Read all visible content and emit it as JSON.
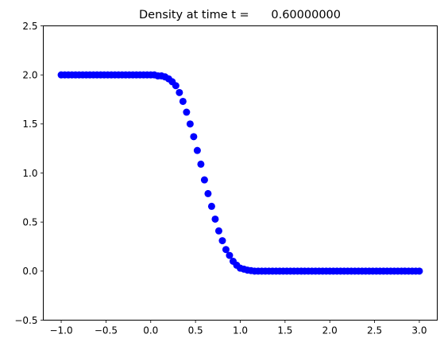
{
  "chart_data": {
    "type": "scatter",
    "title": "Density at time t =      0.60000000",
    "xlabel": "",
    "ylabel": "",
    "xlim": [
      -1.2,
      3.2
    ],
    "ylim": [
      -0.5,
      2.5
    ],
    "grid": false,
    "marker_color": "#0000ff",
    "x_ticks": [
      -1.0,
      -0.5,
      0.0,
      0.5,
      1.0,
      1.5,
      2.0,
      2.5,
      3.0
    ],
    "x_tick_labels": [
      "−1.0",
      "−0.5",
      "0.0",
      "0.5",
      "1.0",
      "1.5",
      "2.0",
      "2.5",
      "3.0"
    ],
    "y_ticks": [
      -0.5,
      0.0,
      0.5,
      1.0,
      1.5,
      2.0,
      2.5
    ],
    "y_tick_labels": [
      "−0.5",
      "0.0",
      "0.5",
      "1.0",
      "1.5",
      "2.0",
      "2.5"
    ],
    "series": [
      {
        "x": [
          -1.0,
          -0.96,
          -0.92,
          -0.88,
          -0.84,
          -0.8,
          -0.76,
          -0.72,
          -0.68,
          -0.64,
          -0.6,
          -0.56,
          -0.52,
          -0.48,
          -0.44,
          -0.4,
          -0.36,
          -0.32,
          -0.28,
          -0.24,
          -0.2,
          -0.16,
          -0.12,
          -0.08,
          -0.04,
          0.0,
          0.04,
          0.08,
          0.12,
          0.16,
          0.2,
          0.24,
          0.28,
          0.32,
          0.36,
          0.4,
          0.44,
          0.48,
          0.52,
          0.56,
          0.6,
          0.64,
          0.68,
          0.72,
          0.76,
          0.8,
          0.84,
          0.88,
          0.92,
          0.96,
          1.0,
          1.04,
          1.08,
          1.12,
          1.16,
          1.2,
          1.24,
          1.28,
          1.32,
          1.36,
          1.4,
          1.44,
          1.48,
          1.52,
          1.56,
          1.6,
          1.64,
          1.68,
          1.72,
          1.76,
          1.8,
          1.84,
          1.88,
          1.92,
          1.96,
          2.0,
          2.04,
          2.08,
          2.12,
          2.16,
          2.2,
          2.24,
          2.28,
          2.32,
          2.36,
          2.4,
          2.44,
          2.48,
          2.52,
          2.56,
          2.6,
          2.64,
          2.68,
          2.72,
          2.76,
          2.8,
          2.84,
          2.88,
          2.92,
          2.96,
          3.0
        ],
        "y": [
          2.0,
          2.0,
          2.0,
          2.0,
          2.0,
          2.0,
          2.0,
          2.0,
          2.0,
          2.0,
          2.0,
          2.0,
          2.0,
          2.0,
          2.0,
          2.0,
          2.0,
          2.0,
          2.0,
          2.0,
          2.0,
          2.0,
          2.0,
          2.0,
          2.0,
          2.0,
          2.0,
          1.99,
          1.99,
          1.98,
          1.96,
          1.93,
          1.89,
          1.82,
          1.73,
          1.62,
          1.5,
          1.37,
          1.23,
          1.09,
          0.93,
          0.79,
          0.66,
          0.53,
          0.41,
          0.31,
          0.22,
          0.16,
          0.1,
          0.06,
          0.03,
          0.02,
          0.01,
          0.005,
          0.0,
          0.0,
          0.0,
          0.0,
          0.0,
          0.0,
          0.0,
          0.0,
          0.0,
          0.0,
          0.0,
          0.0,
          0.0,
          0.0,
          0.0,
          0.0,
          0.0,
          0.0,
          0.0,
          0.0,
          0.0,
          0.0,
          0.0,
          0.0,
          0.0,
          0.0,
          0.0,
          0.0,
          0.0,
          0.0,
          0.0,
          0.0,
          0.0,
          0.0,
          0.0,
          0.0,
          0.0,
          0.0,
          0.0,
          0.0,
          0.0,
          0.0,
          0.0,
          0.0,
          0.0,
          0.0,
          0.0
        ]
      }
    ]
  }
}
